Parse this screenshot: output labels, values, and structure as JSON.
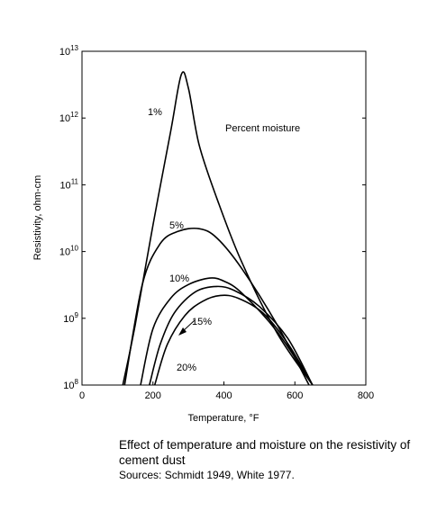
{
  "chart_data": {
    "type": "line",
    "xlabel": "Temperature, °F",
    "ylabel": "Resistivity, ohm-cm",
    "xlim": [
      0,
      800
    ],
    "ylim_log10": [
      8,
      13
    ],
    "y_log_scale": true,
    "x_ticks": [
      0,
      200,
      400,
      600,
      800
    ],
    "y_ticks": [
      {
        "exp": 8,
        "base": "10",
        "sup": "8"
      },
      {
        "exp": 9,
        "base": "10",
        "sup": "9"
      },
      {
        "exp": 10,
        "base": "10",
        "sup": "10"
      },
      {
        "exp": 11,
        "base": "10",
        "sup": "11"
      },
      {
        "exp": 12,
        "base": "10",
        "sup": "12"
      },
      {
        "exp": 13,
        "base": "10",
        "sup": "13"
      }
    ],
    "legend_title": "Percent moisture",
    "series": [
      {
        "name": "1%",
        "x": [
          115,
          150,
          200,
          250,
          280,
          300,
          330,
          380,
          450,
          550,
          650
        ],
        "y": [
          100000000.0,
          800000000.0,
          25000000000.0,
          630000000000.0,
          4500000000000.0,
          2800000000000.0,
          400000000000.0,
          63000000000.0,
          7000000000.0,
          600000000.0,
          100000000.0
        ]
      },
      {
        "name": "5%",
        "x": [
          120,
          170,
          220,
          270,
          330,
          380,
          450,
          550,
          640
        ],
        "y": [
          100000000.0,
          3200000000.0,
          13000000000.0,
          20000000000.0,
          22000000000.0,
          16000000000.0,
          5600000000.0,
          800000000.0,
          100000000.0
        ]
      },
      {
        "name": "10%",
        "x": [
          165,
          200,
          250,
          300,
          360,
          400,
          450,
          550,
          650
        ],
        "y": [
          100000000.0,
          700000000.0,
          2000000000.0,
          3200000000.0,
          4000000000.0,
          3600000000.0,
          2400000000.0,
          630000000.0,
          100000000.0
        ]
      },
      {
        "name": "15%",
        "x": [
          190,
          220,
          260,
          320,
          380,
          430,
          500,
          580,
          650
        ],
        "y": [
          100000000.0,
          400000000.0,
          1200000000.0,
          2500000000.0,
          3000000000.0,
          2600000000.0,
          1500000000.0,
          500000000.0,
          100000000.0
        ]
      },
      {
        "name": "20%",
        "x": [
          205,
          240,
          290,
          340,
          390,
          440,
          510,
          580,
          650
        ],
        "y": [
          100000000.0,
          400000000.0,
          1100000000.0,
          1800000000.0,
          2200000000.0,
          2000000000.0,
          1200000000.0,
          420000000.0,
          100000000.0
        ]
      }
    ]
  },
  "caption": {
    "title": "Effect of temperature and moisture on the resistivity of cement dust",
    "sources": "Sources: Schmidt 1949, White 1977."
  }
}
